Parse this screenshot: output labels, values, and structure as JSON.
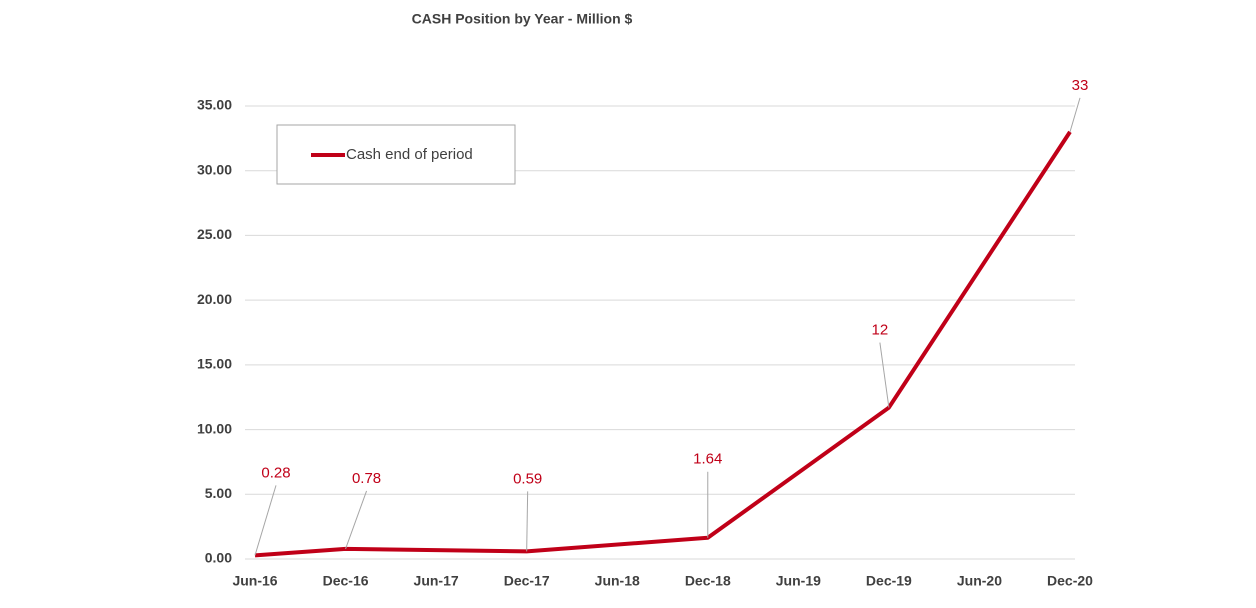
{
  "chart_data": {
    "type": "line",
    "title": "CASH Position by Year - Million $",
    "categories": [
      "Jun-16",
      "Dec-16",
      "Jun-17",
      "Dec-17",
      "Jun-18",
      "Dec-18",
      "Jun-19",
      "Dec-19",
      "Jun-20",
      "Dec-20"
    ],
    "series": [
      {
        "name": "Cash end of period",
        "color": "#c00018",
        "values": [
          0.28,
          0.78,
          null,
          0.59,
          null,
          1.64,
          null,
          11.7,
          null,
          33
        ],
        "value_labels": [
          "0.28",
          "0.78",
          null,
          "0.59",
          null,
          "1.64",
          null,
          "12",
          null,
          "33"
        ]
      }
    ],
    "connect_gaps": true,
    "ylim": [
      0,
      35
    ],
    "yticks": [
      {
        "value": 0,
        "label": "0.00"
      },
      {
        "value": 5,
        "label": "5.00"
      },
      {
        "value": 10,
        "label": "10.00"
      },
      {
        "value": 15,
        "label": "15.00"
      },
      {
        "value": 20,
        "label": "20.00"
      },
      {
        "value": 25,
        "label": "25.00"
      },
      {
        "value": 30,
        "label": "30.00"
      },
      {
        "value": 35,
        "label": "35.00"
      }
    ],
    "grid": true,
    "legend": "top-left"
  }
}
